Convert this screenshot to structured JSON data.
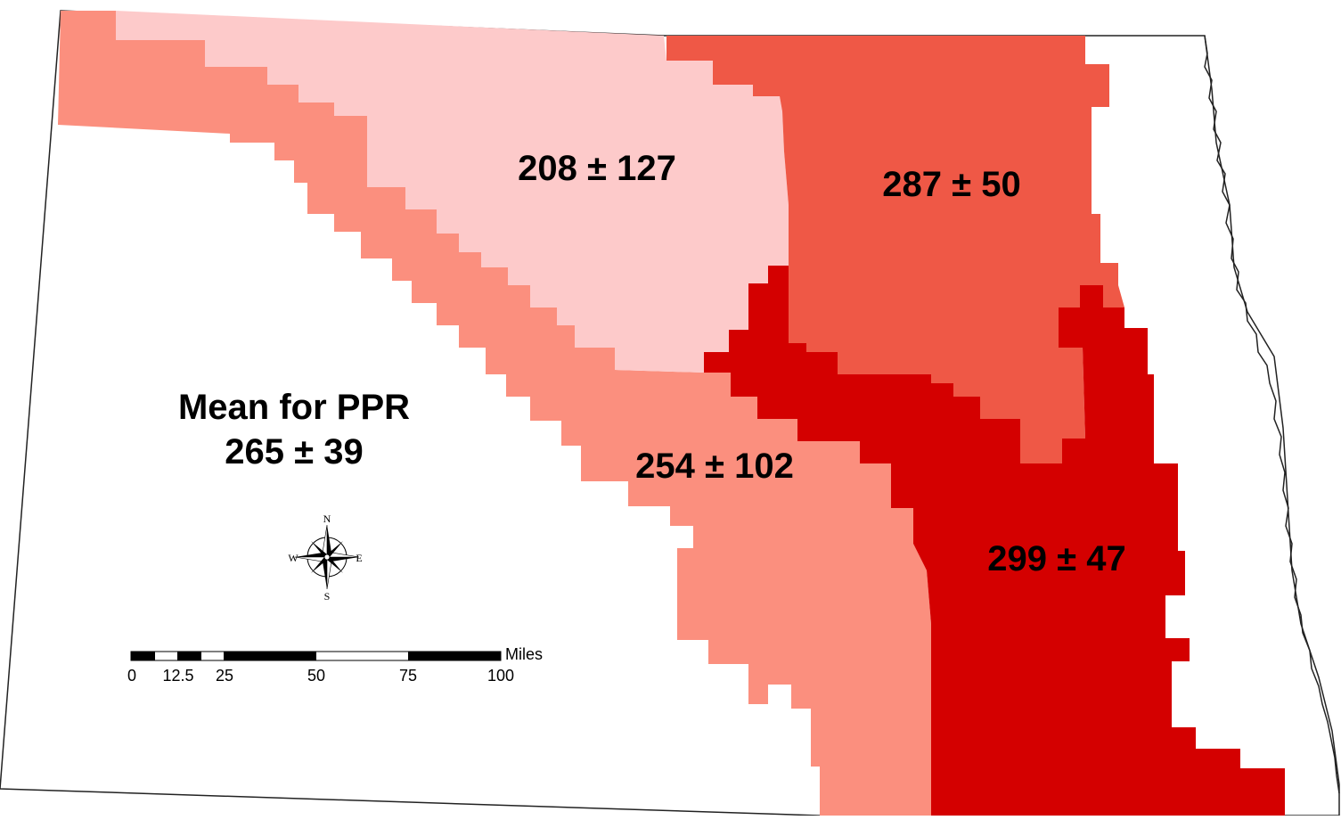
{
  "map": {
    "summary": {
      "title": "Mean for PPR",
      "value": "265 ± 39"
    },
    "regions": [
      {
        "label": "208 ± 127",
        "color": "#fdcaca"
      },
      {
        "label": "287 ± 50",
        "color": "#ef5846"
      },
      {
        "label": "254 ± 102",
        "color": "#fb8f7e"
      },
      {
        "label": "299 ± 47",
        "color": "#d40000"
      }
    ],
    "compass": {
      "n": "N",
      "s": "S",
      "e": "E",
      "w": "W"
    },
    "scale_bar": {
      "unit": "Miles",
      "ticks": [
        "0",
        "12.5",
        "25",
        "50",
        "75",
        "100"
      ]
    }
  }
}
